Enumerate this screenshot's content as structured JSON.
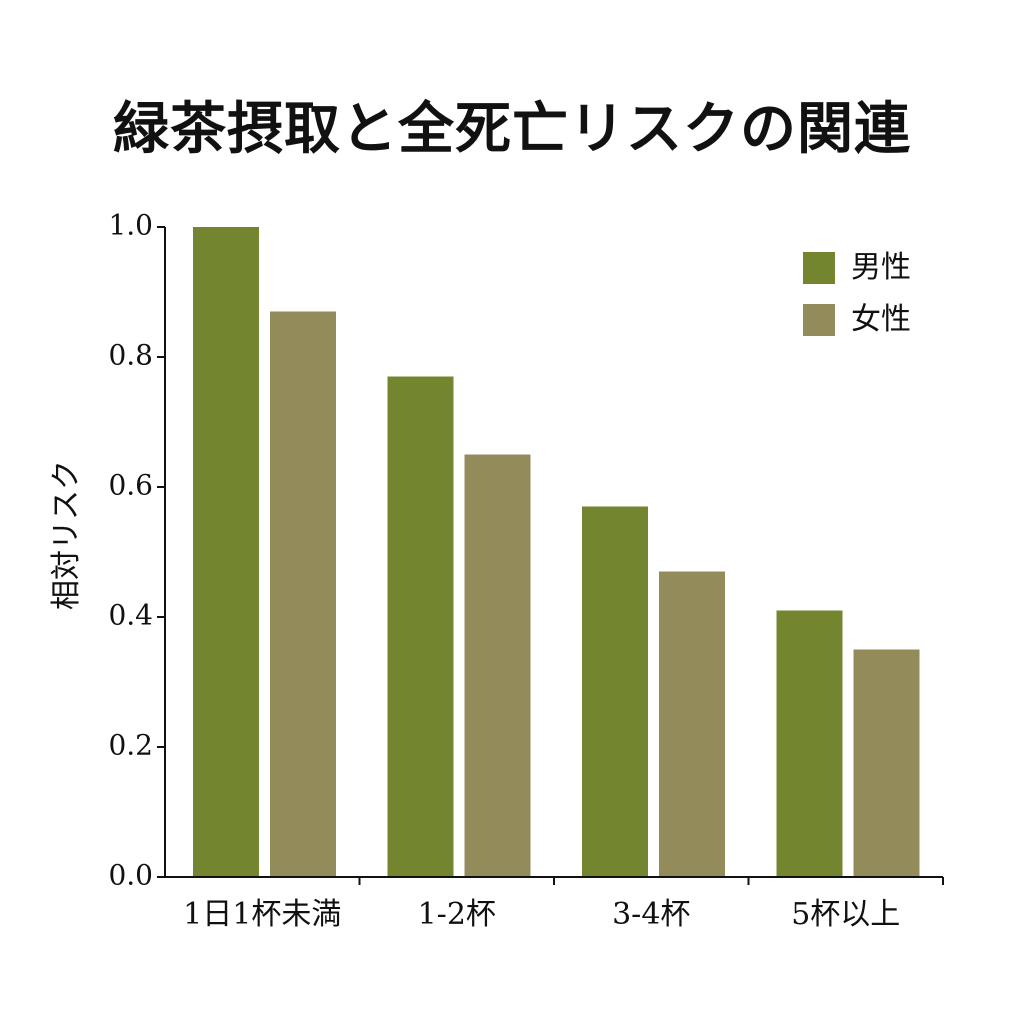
{
  "chart_data": {
    "type": "bar",
    "title": "緑茶摂取と全死亡リスクの関連",
    "xlabel": "",
    "ylabel": "相対リスク",
    "categories": [
      "1日1杯未満",
      "1-2杯",
      "3-4杯",
      "5杯以上"
    ],
    "series": [
      {
        "name": "男性",
        "color": "#748530",
        "values": [
          1.0,
          0.77,
          0.57,
          0.41
        ]
      },
      {
        "name": "女性",
        "color": "#948b5a",
        "values": [
          0.87,
          0.65,
          0.47,
          0.35
        ]
      }
    ],
    "ylim": [
      0,
      1.0
    ],
    "yticks": [
      "0.0",
      "0.2",
      "0.4",
      "0.6",
      "0.8",
      "1.0"
    ],
    "grid": false,
    "legend_position": "top-right"
  }
}
